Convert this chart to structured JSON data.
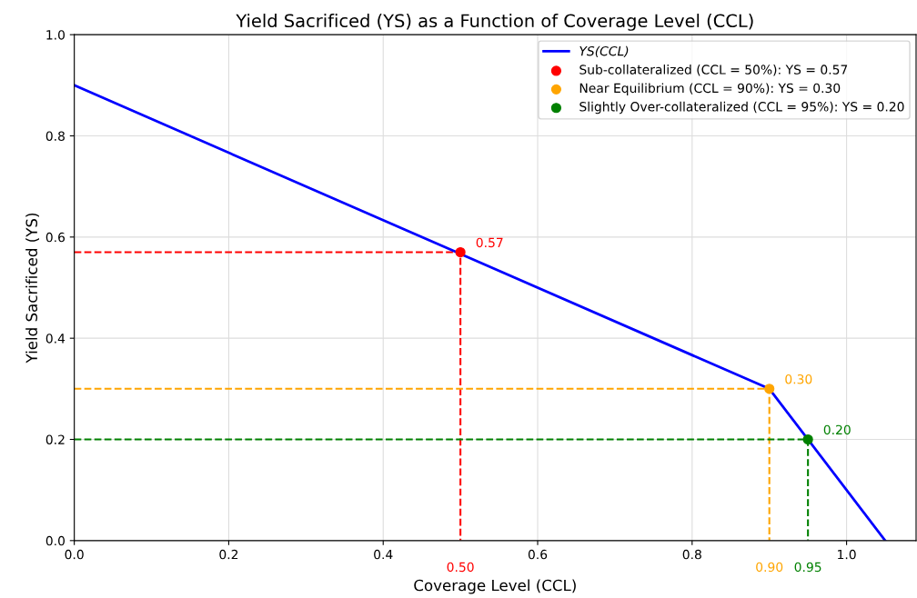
{
  "chart_data": {
    "type": "line",
    "title": "Yield Sacrificed (YS) as a Function of Coverage Level (CCL)",
    "xlabel": "Coverage Level (CCL)",
    "ylabel": "Yield Sacrificed (YS)",
    "xlim": [
      0,
      1.09
    ],
    "ylim": [
      0,
      1.0
    ],
    "xticks": [
      {
        "value": 0,
        "label": "0.0"
      },
      0.2,
      0.4,
      0.6,
      0.8,
      {
        "value": 1.0,
        "label": "1.0"
      }
    ],
    "yticks": [
      {
        "value": 0,
        "label": "0.0"
      },
      0.2,
      0.4,
      0.6,
      0.8,
      {
        "value": 1.0,
        "label": "1.0"
      }
    ],
    "grid": true,
    "legend": "top right",
    "series": [
      {
        "name": "YS(CCL)",
        "color": "#0000ff",
        "x": [
          0,
          0.9,
          1.05
        ],
        "values": [
          0.9,
          0.3,
          0
        ]
      },
      {
        "line_style": "dashed",
        "color": "#ff0000",
        "x": [
          0,
          0.5,
          0.5
        ],
        "values": [
          0.57,
          0.57,
          0
        ]
      },
      {
        "line_style": "dashed",
        "color": "#ffa500",
        "x": [
          0,
          0.9,
          0.9
        ],
        "values": [
          0.3,
          0.3,
          0
        ]
      },
      {
        "line_style": "dashed",
        "color": "#008000",
        "x": [
          0,
          0.95,
          0.95
        ],
        "values": [
          0.2,
          0.2,
          0
        ]
      },
      {
        "name": "Sub-collateralized (CCL = 50%): YS = 0.57",
        "type": "scatter",
        "color": "#ff0000",
        "x": [
          0.5
        ],
        "values": [
          0.57
        ]
      },
      {
        "name": "Near Equilibrium (CCL = 90%): YS = 0.30",
        "type": "scatter",
        "color": "#ffa500",
        "x": [
          0.9
        ],
        "values": [
          0.3
        ]
      },
      {
        "name": "Slightly Over-collateralized (CCL = 95%): YS = 0.20",
        "type": "scatter",
        "color": "#008000",
        "x": [
          0.95
        ],
        "values": [
          0.2
        ]
      }
    ],
    "annotations": [
      {
        "text": "0.57",
        "x": 0.5,
        "y": 0.57
      },
      {
        "text": "0.30",
        "x": 0.9,
        "y": 0.3
      },
      {
        "text": "0.20",
        "x": 0.95,
        "y": 0.2
      },
      {
        "text": "0.50",
        "x": 0.5,
        "y": 0
      },
      {
        "text": "0.90",
        "x": 0.9,
        "y": 0
      },
      {
        "text": "0.95",
        "x": 0.95,
        "y": 0
      }
    ]
  }
}
